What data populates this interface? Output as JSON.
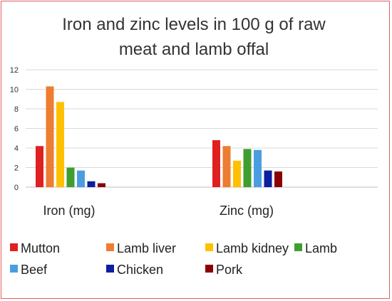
{
  "chart_data": {
    "type": "bar",
    "title_lines": [
      "Iron and zinc levels in 100 g of raw",
      "meat and lamb offal"
    ],
    "categories": [
      "Iron (mg)",
      "Zinc (mg)"
    ],
    "ylim": [
      0,
      12
    ],
    "yticks": [
      "0",
      "2",
      "4",
      "6",
      "8",
      "10",
      "12"
    ],
    "grid": true,
    "legend_position": "bottom",
    "series": [
      {
        "name": "Mutton",
        "color": "#e02020",
        "values": [
          4.2,
          4.8
        ]
      },
      {
        "name": "Lamb liver",
        "color": "#ed7d31",
        "values": [
          10.3,
          4.2
        ]
      },
      {
        "name": "Lamb kidney",
        "color": "#ffc000",
        "values": [
          8.7,
          2.7
        ]
      },
      {
        "name": "Lamb",
        "color": "#3e9e2f",
        "values": [
          2.0,
          3.9
        ]
      },
      {
        "name": "Beef",
        "color": "#4a9ee0",
        "values": [
          1.7,
          3.8
        ]
      },
      {
        "name": "Chicken",
        "color": "#0b1fa0",
        "values": [
          0.6,
          1.7
        ]
      },
      {
        "name": "Pork",
        "color": "#8b0000",
        "values": [
          0.4,
          1.6
        ]
      }
    ]
  }
}
